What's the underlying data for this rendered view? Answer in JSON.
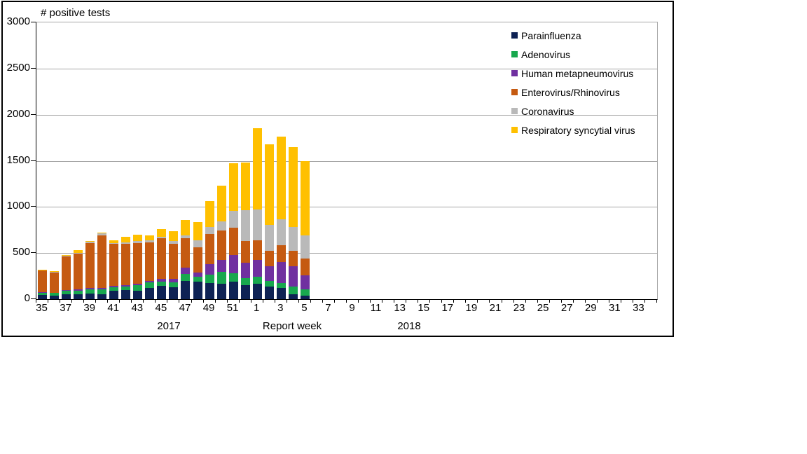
{
  "chart_data": {
    "type": "bar",
    "stacked": true,
    "title": "# positive tests",
    "xlabel": "Report week",
    "ylabel": "# positive tests",
    "ylim": [
      0,
      3000
    ],
    "y_ticks": [
      0,
      500,
      1000,
      1500,
      2000,
      2500,
      3000
    ],
    "grid": true,
    "legend_position": "top-right",
    "x_total_slots": 52,
    "x_slot_weeks_2017_start": 35,
    "year_labels": [
      {
        "text": "2017"
      },
      {
        "text": "2018"
      }
    ],
    "categories": [
      "35",
      "36",
      "37",
      "38",
      "39",
      "40",
      "41",
      "42",
      "43",
      "44",
      "45",
      "46",
      "47",
      "48",
      "49",
      "50",
      "51",
      "52",
      "1",
      "2",
      "3",
      "4",
      "5"
    ],
    "series": [
      {
        "name": "Parainfluenza",
        "color": "#0E2254",
        "values": [
          45,
          40,
          50,
          55,
          58,
          55,
          88,
          100,
          93,
          125,
          145,
          128,
          200,
          190,
          178,
          166,
          190,
          154,
          168,
          137,
          120,
          56,
          40
        ]
      },
      {
        "name": "Adenovirus",
        "color": "#18A84E",
        "values": [
          25,
          25,
          38,
          40,
          48,
          50,
          43,
          38,
          58,
          58,
          46,
          56,
          77,
          51,
          90,
          128,
          90,
          77,
          76,
          60,
          56,
          84,
          70
        ]
      },
      {
        "name": "Human metapneumovirus",
        "color": "#7030A0",
        "values": [
          8,
          5,
          12,
          10,
          15,
          15,
          13,
          13,
          18,
          18,
          31,
          33,
          64,
          51,
          115,
          128,
          198,
          166,
          180,
          160,
          230,
          218,
          148
        ]
      },
      {
        "name": "Enterovirus/Rhinovirus",
        "color": "#C55A11",
        "values": [
          230,
          220,
          362,
          390,
          488,
          570,
          455,
          450,
          438,
          412,
          436,
          384,
          322,
          270,
          320,
          320,
          300,
          230,
          212,
          168,
          180,
          166,
          180
        ]
      },
      {
        "name": "Coronavirus",
        "color": "#B9B9B9",
        "values": [
          7,
          5,
          8,
          10,
          11,
          25,
          10,
          15,
          26,
          27,
          20,
          31,
          29,
          78,
          78,
          102,
          178,
          335,
          340,
          280,
          282,
          256,
          256
        ]
      },
      {
        "name": "Respiratory syncytial virus",
        "color": "#FFC000",
        "values": [
          5,
          5,
          10,
          25,
          10,
          10,
          30,
          60,
          65,
          50,
          82,
          103,
          166,
          192,
          282,
          390,
          519,
          518,
          879,
          875,
          892,
          865,
          806
        ]
      }
    ],
    "totals": [
      320,
      300,
      480,
      530,
      630,
      725,
      639,
      676,
      698,
      690,
      760,
      735,
      858,
      832,
      1063,
      1234,
      1475,
      1480,
      1855,
      1680,
      1760,
      1645,
      1500
    ]
  },
  "colors": {
    "gridline": "#A6A6A6",
    "axis": "#000000",
    "chart_border": "#000000",
    "background": "#FFFFFF"
  }
}
